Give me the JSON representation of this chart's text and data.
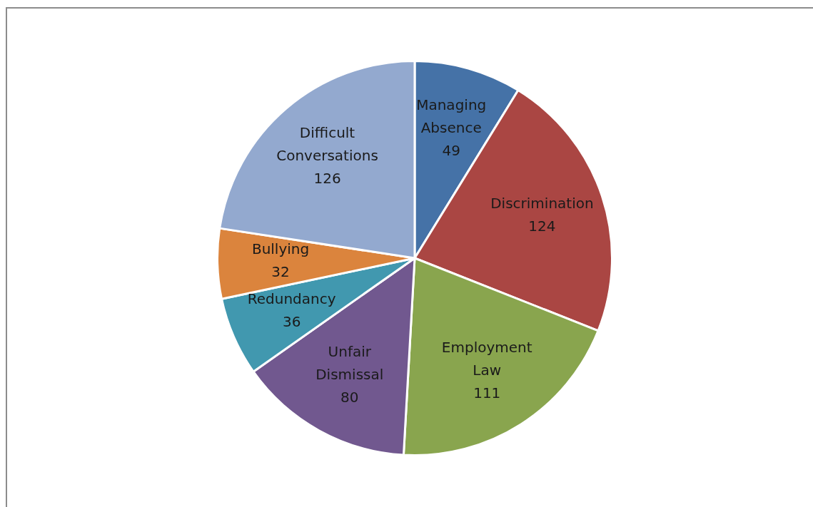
{
  "chart_data": {
    "type": "pie",
    "categories": [
      "Managing Absence",
      "Discrimination",
      "Employment Law",
      "Unfair Dismissal",
      "Redundancy",
      "Bullying",
      "Difficult Conversations"
    ],
    "values": [
      49,
      124,
      111,
      80,
      36,
      32,
      126
    ],
    "colors": [
      "#4572a7",
      "#aa4643",
      "#89a54e",
      "#71588f",
      "#4198af",
      "#db843d",
      "#93a9cf"
    ],
    "data_labels": true,
    "legend": false
  }
}
